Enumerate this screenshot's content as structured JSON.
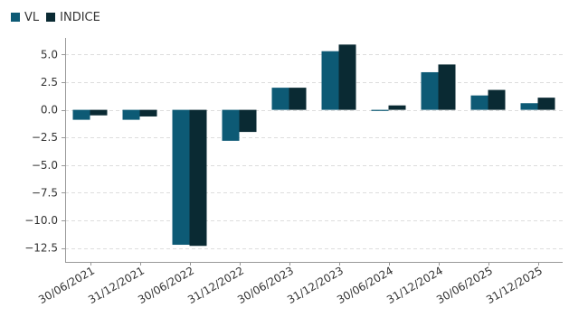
{
  "chart_data": {
    "type": "bar",
    "categories": [
      "30/06/2021",
      "31/12/2021",
      "30/06/2022",
      "31/12/2022",
      "30/06/2023",
      "31/12/2023",
      "30/06/2024",
      "31/12/2024",
      "30/06/2025",
      "31/12/2025"
    ],
    "series": [
      {
        "name": "VL",
        "color": "#0d5a75",
        "values": [
          -0.9,
          -0.9,
          -12.2,
          -2.8,
          2.0,
          5.3,
          -0.1,
          3.4,
          1.3,
          0.6
        ]
      },
      {
        "name": "INDICE",
        "color": "#0a2a33",
        "values": [
          -0.5,
          -0.6,
          -12.3,
          -2.0,
          2.0,
          5.9,
          0.4,
          4.1,
          1.8,
          1.1
        ]
      }
    ],
    "yticks": [
      5.0,
      2.5,
      0.0,
      -2.5,
      -5.0,
      -7.5,
      -10.0,
      -12.5
    ],
    "ytick_labels": [
      "5.0",
      "2.5",
      "0.0",
      "−2.5",
      "−5.0",
      "−7.5",
      "−10.0",
      "−12.5"
    ],
    "ylim": [
      -13.75,
      6.5
    ],
    "grid": true,
    "legend_position": "top-left"
  }
}
